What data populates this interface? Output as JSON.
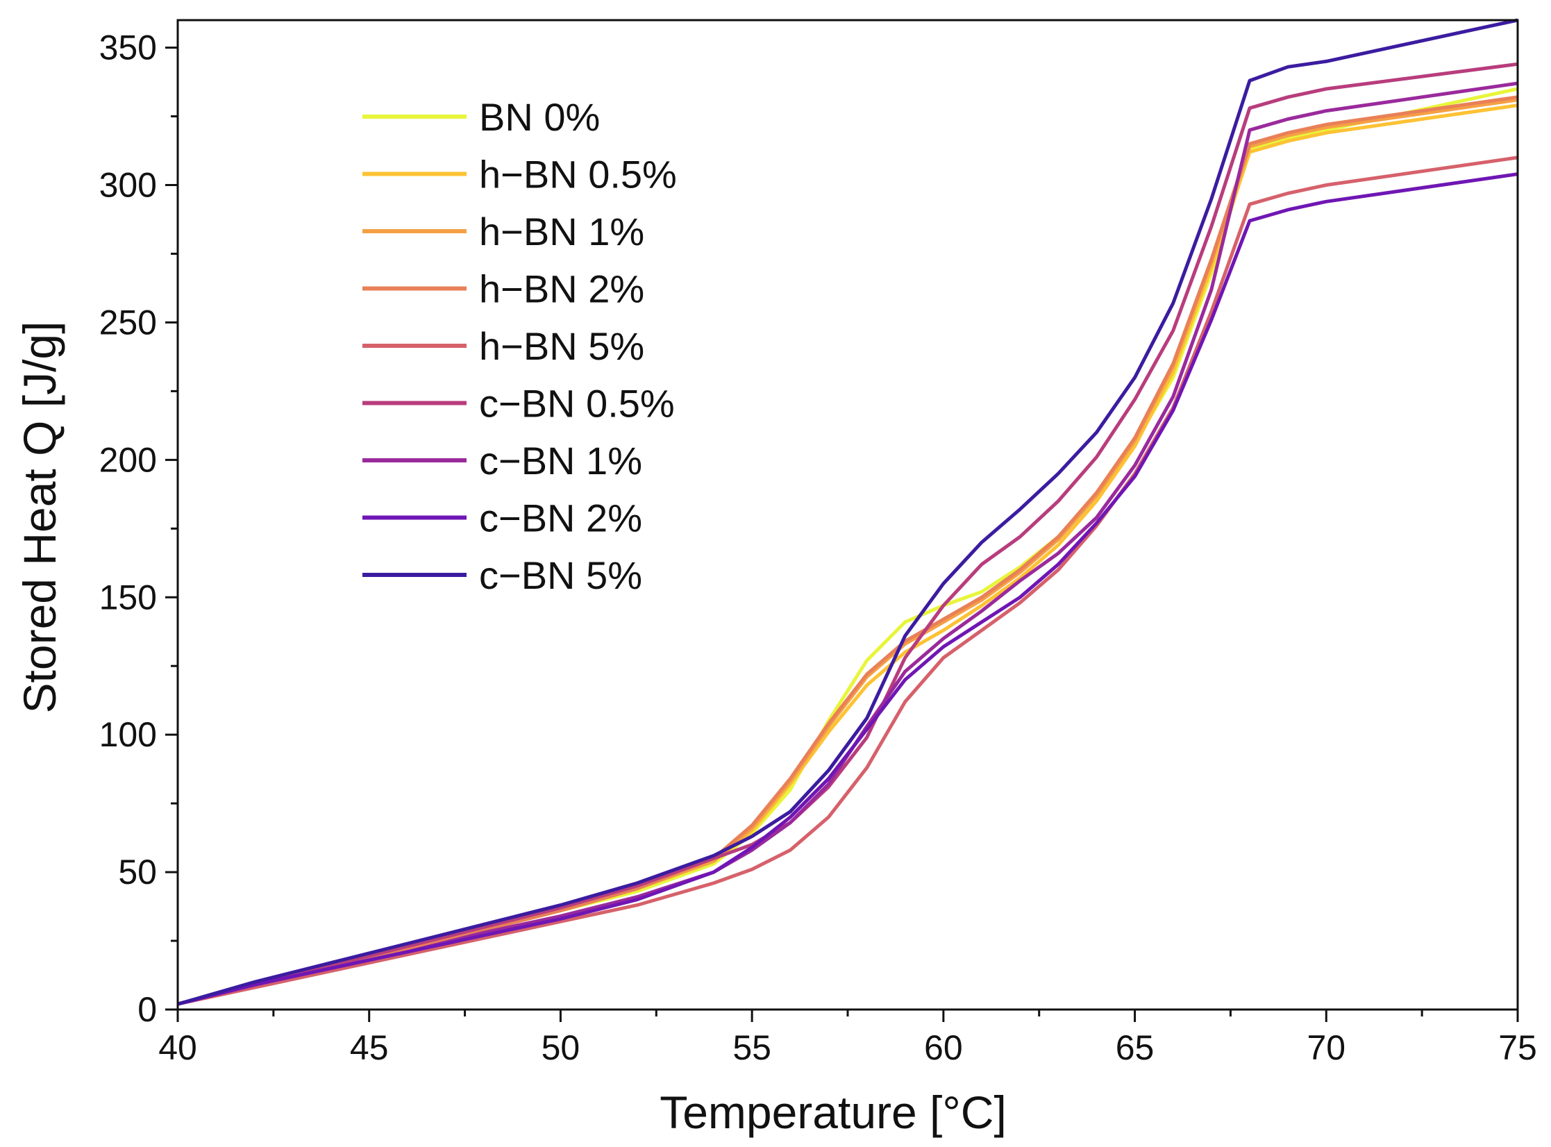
{
  "chart_data": {
    "type": "line",
    "title": "",
    "xlabel": "Temperature [°C]",
    "ylabel": "Stored Heat Q [J/g]",
    "xlim": [
      40,
      75
    ],
    "ylim": [
      0,
      360
    ],
    "x_ticks": [
      40,
      45,
      50,
      55,
      60,
      65,
      70,
      75
    ],
    "y_ticks": [
      0,
      50,
      100,
      150,
      200,
      250,
      300,
      350
    ],
    "x_tick_labels": [
      "40",
      "45",
      "50",
      "55",
      "60",
      "65",
      "70",
      "75"
    ],
    "y_tick_labels": [
      "0",
      "50",
      "100",
      "150",
      "200",
      "250",
      "300",
      "350"
    ],
    "grid": false,
    "legend_position": "upper-left",
    "x": [
      40,
      42,
      44,
      46,
      48,
      50,
      52,
      54,
      55,
      56,
      57,
      58,
      59,
      60,
      61,
      62,
      63,
      64,
      65,
      66,
      67,
      68,
      69,
      70,
      75
    ],
    "series": [
      {
        "name": "BN 0%",
        "color": "#e8f53a",
        "values": [
          2,
          9,
          16,
          22,
          29,
          36,
          43,
          53,
          64,
          80,
          105,
          127,
          141,
          147,
          152,
          161,
          172,
          187,
          206,
          230,
          268,
          313,
          317,
          320,
          335
        ]
      },
      {
        "name": "h−BN 0.5%",
        "color": "#fdc234",
        "values": [
          2,
          9,
          16,
          22,
          29,
          36,
          44,
          54,
          65,
          82,
          101,
          118,
          130,
          138,
          147,
          157,
          169,
          185,
          205,
          232,
          270,
          312,
          316,
          319,
          329
        ]
      },
      {
        "name": "h−BN 1%",
        "color": "#f5a045",
        "values": [
          2,
          9,
          16,
          22,
          29,
          36,
          44,
          54,
          66,
          83,
          103,
          121,
          133,
          141,
          149,
          159,
          171,
          187,
          207,
          234,
          272,
          314,
          318,
          321,
          331
        ]
      },
      {
        "name": "h−BN 2%",
        "color": "#e98057",
        "values": [
          2,
          9,
          16,
          22,
          29,
          36,
          44,
          55,
          67,
          84,
          104,
          122,
          134,
          142,
          150,
          160,
          172,
          188,
          208,
          235,
          273,
          315,
          319,
          322,
          332
        ]
      },
      {
        "name": "h−BN 5%",
        "color": "#d6616b",
        "values": [
          2,
          8,
          14,
          20,
          26,
          32,
          38,
          46,
          51,
          58,
          70,
          88,
          112,
          128,
          138,
          148,
          160,
          176,
          195,
          219,
          254,
          293,
          297,
          300,
          310
        ]
      },
      {
        "name": "c−BN 0.5%",
        "color": "#b83d7d",
        "values": [
          2,
          9,
          16,
          23,
          30,
          37,
          45,
          55,
          60,
          68,
          81,
          99,
          128,
          147,
          162,
          172,
          185,
          201,
          222,
          247,
          285,
          328,
          332,
          335,
          344
        ]
      },
      {
        "name": "c−BN 1%",
        "color": "#9a2a9c",
        "values": [
          2,
          9,
          15,
          21,
          28,
          34,
          41,
          50,
          58,
          68,
          82,
          103,
          123,
          135,
          145,
          156,
          166,
          179,
          198,
          223,
          262,
          320,
          324,
          327,
          337
        ]
      },
      {
        "name": "c−BN 2%",
        "color": "#6f16b4",
        "values": [
          2,
          9,
          15,
          21,
          27,
          33,
          40,
          50,
          59,
          70,
          84,
          102,
          120,
          132,
          141,
          150,
          162,
          177,
          194,
          218,
          251,
          287,
          291,
          294,
          304
        ]
      },
      {
        "name": "c−BN 5%",
        "color": "#3b1ca0",
        "values": [
          2,
          10,
          17,
          24,
          31,
          38,
          46,
          56,
          63,
          72,
          87,
          106,
          136,
          155,
          170,
          182,
          195,
          210,
          230,
          257,
          295,
          338,
          343,
          345,
          360
        ]
      }
    ]
  }
}
